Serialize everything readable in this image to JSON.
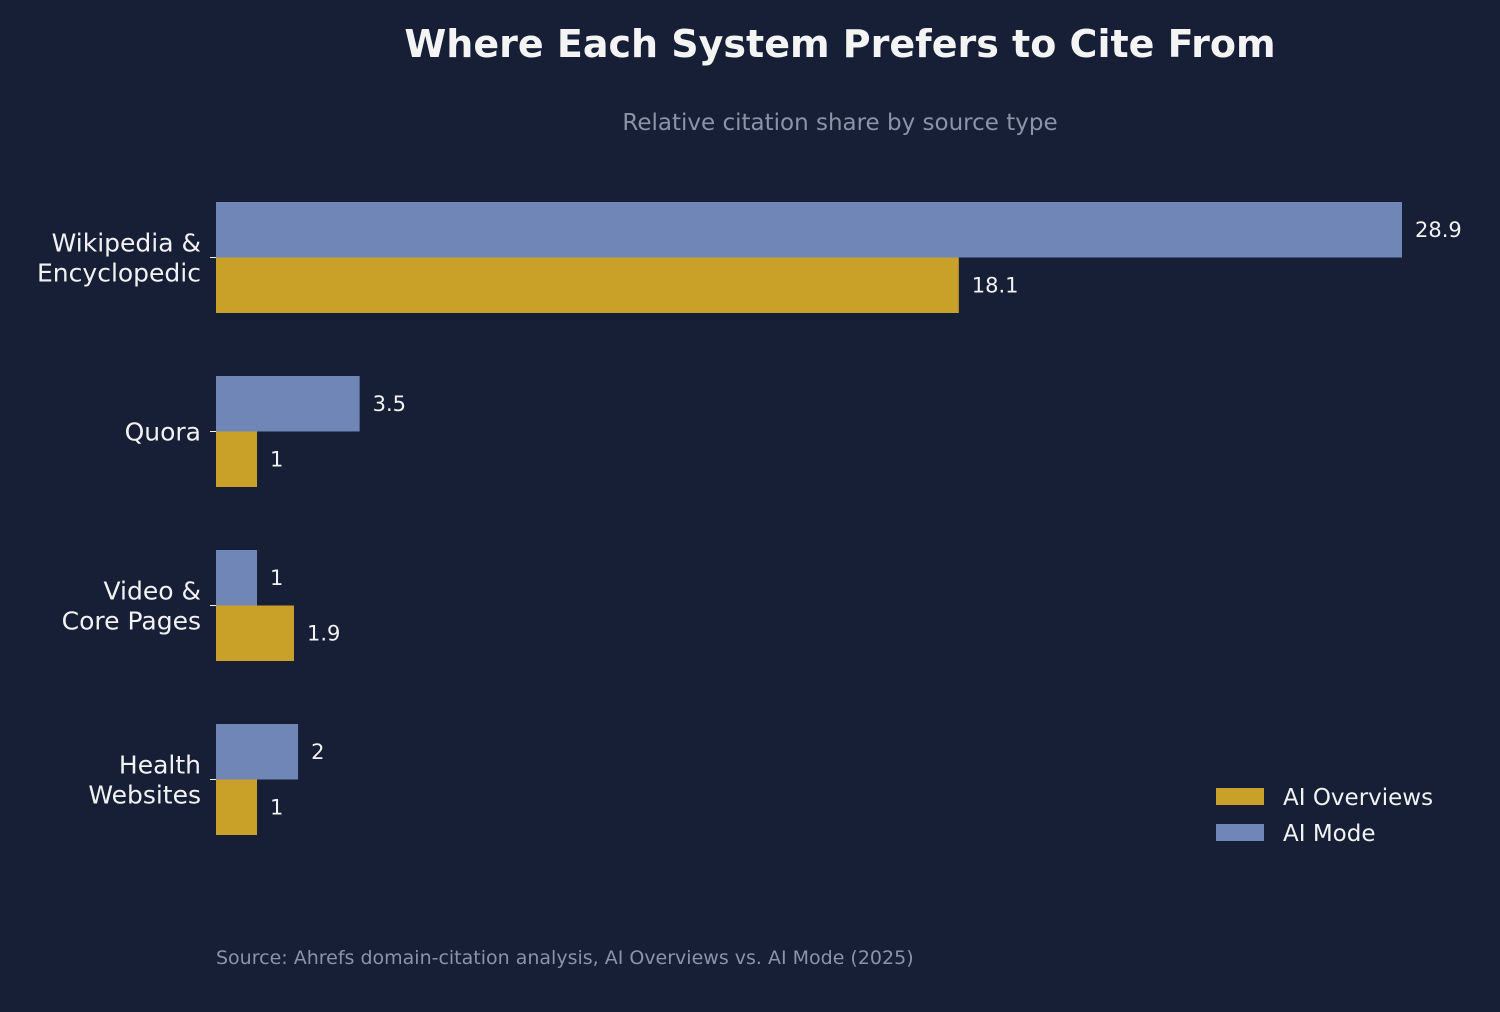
{
  "chart_data": {
    "type": "bar",
    "orientation": "horizontal",
    "title": "Where Each System Prefers to Cite From",
    "subtitle": "Relative citation share by source type",
    "categories": [
      [
        "Wikipedia &",
        "Encyclopedic"
      ],
      [
        "Quora"
      ],
      [
        "Video &",
        "Core Pages"
      ],
      [
        "Health",
        "Websites"
      ]
    ],
    "series": [
      {
        "name": "AI Mode",
        "color": "#6f86b7",
        "values": [
          28.9,
          3.5,
          1,
          2
        ]
      },
      {
        "name": "AI Overviews",
        "color": "#c9a028",
        "values": [
          18.1,
          1,
          1.9,
          1
        ]
      }
    ],
    "legend_order": [
      "AI Overviews",
      "AI Mode"
    ],
    "legend_position": "bottom-right",
    "xlim": [
      0,
      28.9
    ],
    "grid": false,
    "source": "Source: Ahrefs domain-citation analysis, AI Overviews vs. AI Mode (2025)"
  }
}
